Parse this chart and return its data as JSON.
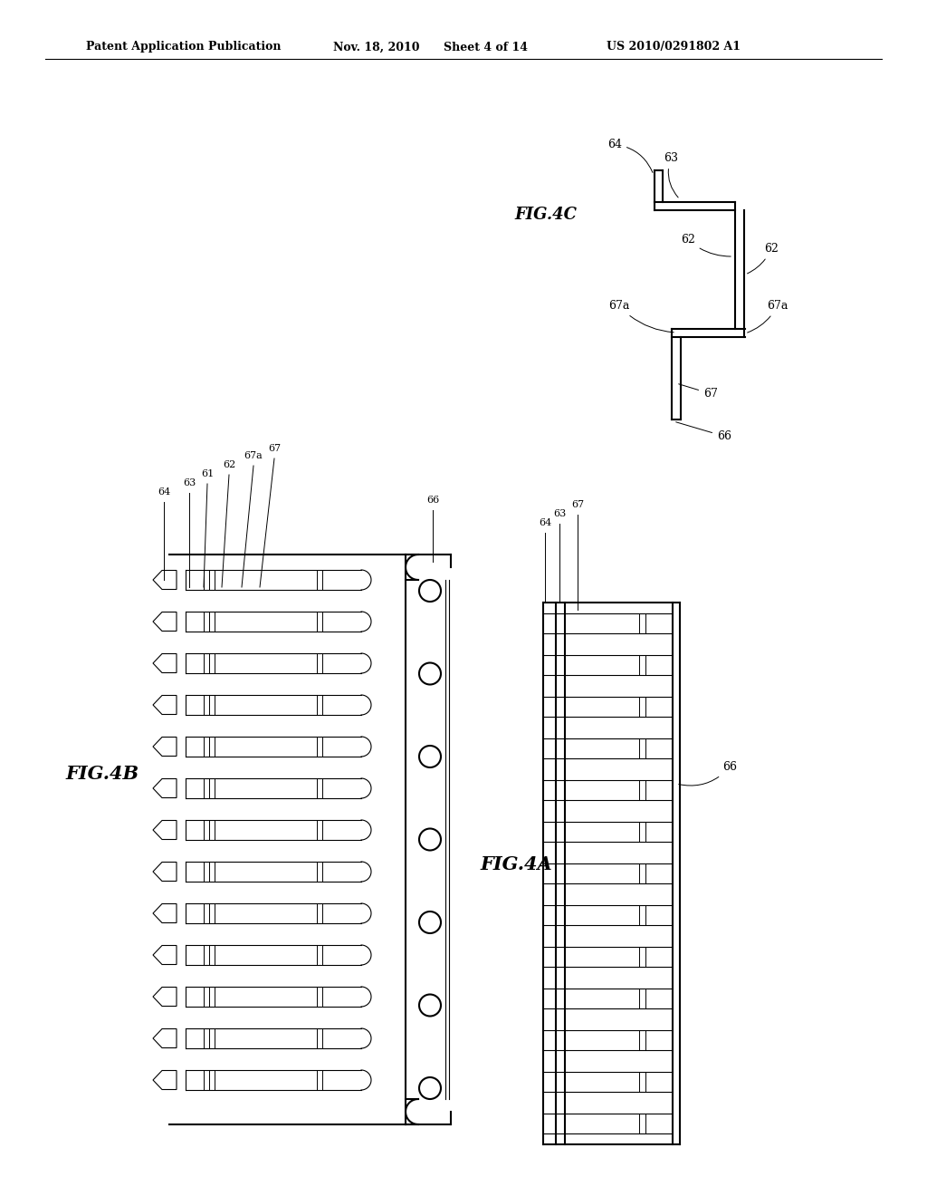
{
  "bg_color": "#ffffff",
  "header_text": "Patent Application Publication",
  "header_date": "Nov. 18, 2010",
  "header_sheet": "Sheet 4 of 14",
  "header_patent": "US 2010/0291802 A1",
  "fig4c_label": "FIG.4C",
  "fig4b_label": "FIG.4B",
  "fig4a_label": "FIG.4A",
  "line_color": "#000000",
  "lw": 1.5,
  "tlw": 0.8
}
